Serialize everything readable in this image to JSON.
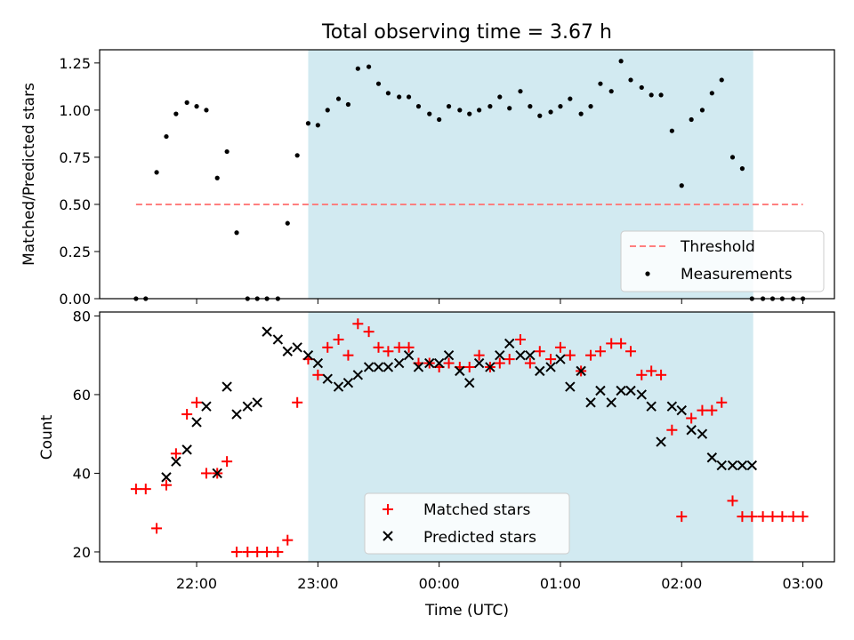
{
  "figure": {
    "title": "Total observing time = 3.67 h",
    "xlabel": "Time (UTC)",
    "x_ticks": [
      "22:00",
      "23:00",
      "00:00",
      "01:00",
      "02:00",
      "03:00"
    ]
  },
  "colors": {
    "shade": "#add8e6",
    "threshold": "#ff7f7f",
    "measurement": "#000000",
    "matched": "#ff0000",
    "predicted": "#000000"
  },
  "chart_data": [
    {
      "type": "scatter",
      "ylabel": "Matched/Predicted stars",
      "x_unit": "hours since 21:00 UTC",
      "xlim": [
        0.2,
        6.26
      ],
      "ylim": [
        0,
        1.32
      ],
      "y_ticks": [
        "0.00",
        "0.25",
        "0.50",
        "0.75",
        "1.00",
        "1.25"
      ],
      "shaded_region": [
        1.92,
        5.59
      ],
      "threshold": {
        "name": "Threshold",
        "value": 0.5,
        "x_range": [
          0.5,
          6.0
        ]
      },
      "legend": {
        "position": "lower right",
        "entries": [
          "Threshold",
          "Measurements"
        ]
      },
      "series": [
        {
          "name": "Measurements",
          "x": [
            0.5,
            0.58,
            0.67,
            0.75,
            0.83,
            0.92,
            1.0,
            1.08,
            1.17,
            1.25,
            1.33,
            1.42,
            1.5,
            1.58,
            1.67,
            1.75,
            1.83,
            1.92,
            2.0,
            2.08,
            2.17,
            2.25,
            2.33,
            2.42,
            2.5,
            2.58,
            2.67,
            2.75,
            2.83,
            2.92,
            3.0,
            3.08,
            3.17,
            3.25,
            3.33,
            3.42,
            3.5,
            3.58,
            3.67,
            3.75,
            3.83,
            3.92,
            4.0,
            4.08,
            4.17,
            4.25,
            4.33,
            4.42,
            4.5,
            4.58,
            4.67,
            4.75,
            4.83,
            4.92,
            5.0,
            5.08,
            5.17,
            5.25,
            5.33,
            5.42,
            5.5,
            5.58,
            5.67,
            5.75,
            5.83,
            5.92,
            6.0
          ],
          "y": [
            0.0,
            0.0,
            0.67,
            0.86,
            0.98,
            1.04,
            1.02,
            1.0,
            0.64,
            0.78,
            0.35,
            0.0,
            0.0,
            0.0,
            0.0,
            0.4,
            0.76,
            0.93,
            0.92,
            1.0,
            1.06,
            1.03,
            1.22,
            1.23,
            1.14,
            1.09,
            1.07,
            1.07,
            1.02,
            0.98,
            0.95,
            1.02,
            1.0,
            0.98,
            1.0,
            1.02,
            1.07,
            1.01,
            1.1,
            1.02,
            0.97,
            0.99,
            1.02,
            1.06,
            0.98,
            1.02,
            1.14,
            1.1,
            1.26,
            1.16,
            1.12,
            1.08,
            1.08,
            0.89,
            0.6,
            0.95,
            1.0,
            1.09,
            1.16,
            0.75,
            0.69,
            0.0,
            0.0,
            0.0,
            0.0,
            0.0,
            0.0
          ]
        }
      ]
    },
    {
      "type": "scatter",
      "ylabel": "Count",
      "x_unit": "hours since 21:00 UTC",
      "xlim": [
        0.2,
        6.26
      ],
      "ylim": [
        17.5,
        81
      ],
      "y_ticks": [
        "20",
        "40",
        "60",
        "80"
      ],
      "shaded_region": [
        1.92,
        5.59
      ],
      "legend": {
        "position": "lower center",
        "entries": [
          "Matched stars",
          "Predicted stars"
        ]
      },
      "series": [
        {
          "name": "Matched stars",
          "marker": "+",
          "x": [
            0.5,
            0.58,
            0.67,
            0.75,
            0.83,
            0.92,
            1.0,
            1.08,
            1.17,
            1.25,
            1.33,
            1.42,
            1.5,
            1.58,
            1.67,
            1.75,
            1.83,
            1.92,
            2.0,
            2.08,
            2.17,
            2.25,
            2.33,
            2.42,
            2.5,
            2.58,
            2.67,
            2.75,
            2.83,
            2.92,
            3.0,
            3.08,
            3.17,
            3.25,
            3.33,
            3.42,
            3.5,
            3.58,
            3.67,
            3.75,
            3.83,
            3.92,
            4.0,
            4.08,
            4.17,
            4.25,
            4.33,
            4.42,
            4.5,
            4.58,
            4.67,
            4.75,
            4.83,
            4.92,
            5.0,
            5.08,
            5.17,
            5.25,
            5.33,
            5.42,
            5.5,
            5.58,
            5.67,
            5.75,
            5.83,
            5.92,
            6.0
          ],
          "y": [
            36,
            36,
            26,
            37,
            45,
            55,
            58,
            40,
            40,
            43,
            20,
            20,
            20,
            20,
            20,
            23,
            58,
            69,
            65,
            72,
            74,
            70,
            78,
            76,
            72,
            71,
            72,
            72,
            68,
            68,
            67,
            68,
            67,
            67,
            70,
            67,
            68,
            69,
            74,
            68,
            71,
            69,
            72,
            70,
            66,
            70,
            71,
            73,
            73,
            71,
            65,
            66,
            65,
            51,
            29,
            54,
            56,
            56,
            58,
            33,
            29,
            29,
            29,
            29,
            29,
            29,
            29
          ]
        },
        {
          "name": "Predicted stars",
          "marker": "x",
          "x": [
            0.75,
            0.83,
            0.92,
            1.0,
            1.08,
            1.17,
            1.25,
            1.33,
            1.42,
            1.5,
            1.58,
            1.67,
            1.75,
            1.83,
            1.92,
            2.0,
            2.08,
            2.17,
            2.25,
            2.33,
            2.42,
            2.5,
            2.58,
            2.67,
            2.75,
            2.83,
            2.92,
            3.0,
            3.08,
            3.17,
            3.25,
            3.33,
            3.42,
            3.5,
            3.58,
            3.67,
            3.75,
            3.83,
            3.92,
            4.0,
            4.08,
            4.17,
            4.25,
            4.33,
            4.42,
            4.5,
            4.58,
            4.67,
            4.75,
            4.83,
            4.92,
            5.0,
            5.08,
            5.17,
            5.25,
            5.33,
            5.42,
            5.5,
            5.58
          ],
          "y": [
            39,
            43,
            46,
            53,
            57,
            40,
            62,
            55,
            57,
            58,
            76,
            74,
            71,
            72,
            70,
            68,
            64,
            62,
            63,
            65,
            67,
            67,
            67,
            68,
            70,
            67,
            68,
            68,
            70,
            66,
            63,
            68,
            67,
            70,
            73,
            70,
            70,
            66,
            67,
            69,
            62,
            66,
            58,
            61,
            58,
            61,
            61,
            60,
            57,
            48,
            57,
            56,
            51,
            50,
            44,
            42,
            42,
            42,
            42
          ]
        }
      ]
    }
  ]
}
